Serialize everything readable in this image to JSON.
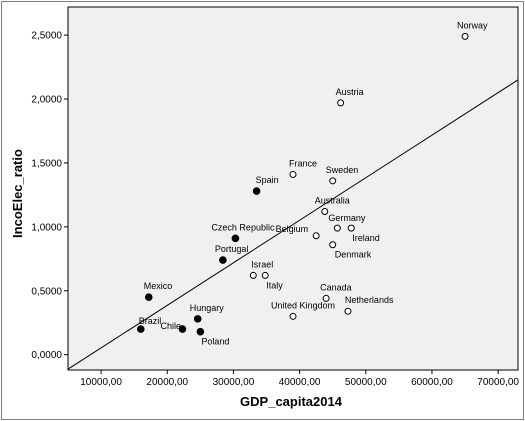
{
  "chart_data": {
    "type": "scatter",
    "xlabel": "GDP_capita2014",
    "ylabel": "IncoElec_ratio",
    "xlim": [
      5000,
      73000
    ],
    "ylim": [
      -0.12,
      2.72
    ],
    "x_ticks": [
      10000,
      20000,
      30000,
      40000,
      50000,
      60000,
      70000
    ],
    "x_tick_labels": [
      "10000,00",
      "20000,00",
      "30000,00",
      "40000,00",
      "50000,00",
      "60000,00",
      "70000,00"
    ],
    "y_ticks": [
      0,
      0.5,
      1.0,
      1.5,
      2.0,
      2.5
    ],
    "y_tick_labels": [
      "0,0000",
      "0,5000",
      "1,0000",
      "1,5000",
      "2,0000",
      "2,5000"
    ],
    "grid": false,
    "plot_background": "#f0f0f0",
    "filled_color": "#000000",
    "open_color": "#ffffff",
    "fit_line": {
      "x": [
        4800,
        73000
      ],
      "y": [
        -0.12,
        2.15
      ]
    },
    "points": [
      {
        "label": "Norway",
        "x": 65000,
        "y": 2.49,
        "filled": false
      },
      {
        "label": "Austria",
        "x": 46200,
        "y": 1.97,
        "filled": false
      },
      {
        "label": "France",
        "x": 39000,
        "y": 1.41,
        "filled": false
      },
      {
        "label": "Sweden",
        "x": 45000,
        "y": 1.36,
        "filled": false
      },
      {
        "label": "Spain",
        "x": 33500,
        "y": 1.28,
        "filled": true
      },
      {
        "label": "Australia",
        "x": 43800,
        "y": 1.12,
        "filled": false
      },
      {
        "label": "Germany",
        "x": 45700,
        "y": 0.99,
        "filled": false
      },
      {
        "label": "Ireland",
        "x": 47800,
        "y": 0.99,
        "filled": false
      },
      {
        "label": "Belgium",
        "x": 42500,
        "y": 0.93,
        "filled": false
      },
      {
        "label": "Czech Republic",
        "x": 30300,
        "y": 0.91,
        "filled": true
      },
      {
        "label": "Denmark",
        "x": 45000,
        "y": 0.86,
        "filled": false
      },
      {
        "label": "Portugal",
        "x": 28400,
        "y": 0.74,
        "filled": true
      },
      {
        "label": "Israel",
        "x": 33000,
        "y": 0.62,
        "filled": false
      },
      {
        "label": "Italy",
        "x": 34800,
        "y": 0.62,
        "filled": false
      },
      {
        "label": "Mexico",
        "x": 17200,
        "y": 0.45,
        "filled": true
      },
      {
        "label": "Canada",
        "x": 44000,
        "y": 0.44,
        "filled": false
      },
      {
        "label": "Netherlands",
        "x": 47300,
        "y": 0.34,
        "filled": false
      },
      {
        "label": "United Kingdom",
        "x": 39000,
        "y": 0.3,
        "filled": false
      },
      {
        "label": "Hungary",
        "x": 24600,
        "y": 0.28,
        "filled": true
      },
      {
        "label": "Brazil",
        "x": 16000,
        "y": 0.2,
        "filled": true
      },
      {
        "label": "Chile",
        "x": 22300,
        "y": 0.2,
        "filled": true
      },
      {
        "label": "Poland",
        "x": 25000,
        "y": 0.18,
        "filled": true
      }
    ]
  }
}
